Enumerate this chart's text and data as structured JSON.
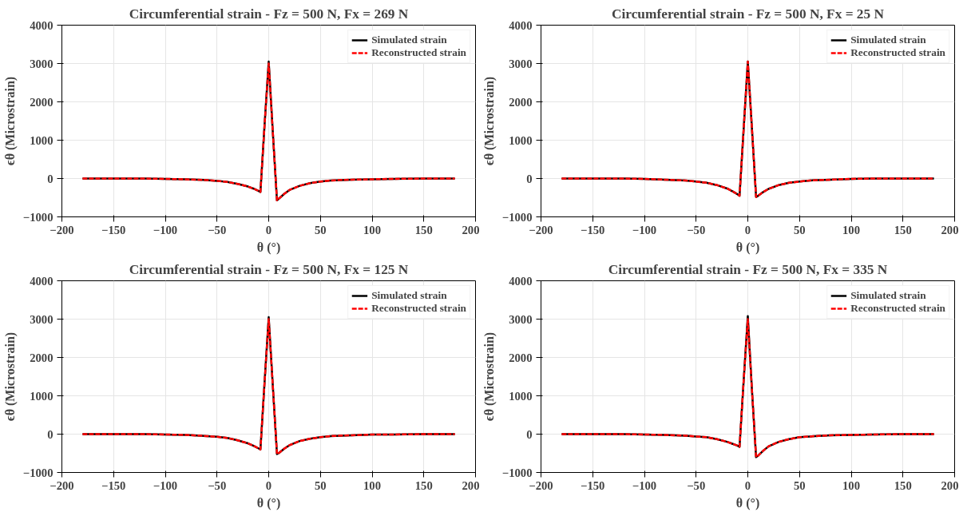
{
  "chart_data": [
    {
      "type": "line",
      "title": "Circumferential strain - Fz = 500 N, Fx = 269 N",
      "xlabel": "θ (°)",
      "ylabel": "ϵθ (Microstrain)",
      "x": [
        -180,
        -150,
        -120,
        -100,
        -80,
        -60,
        -50,
        -40,
        -30,
        -20,
        -15,
        -10,
        -8,
        -4,
        0,
        4,
        8,
        10,
        15,
        20,
        30,
        40,
        50,
        60,
        80,
        100,
        120,
        150,
        180
      ],
      "series": [
        {
          "name": "Simulated strain",
          "color": "#000000",
          "line_style": "solid",
          "values": [
            0,
            0,
            0,
            -10,
            -20,
            -40,
            -60,
            -90,
            -140,
            -210,
            -260,
            -320,
            -350,
            1400,
            3050,
            1200,
            -570,
            -520,
            -400,
            -300,
            -190,
            -120,
            -80,
            -50,
            -30,
            -20,
            -10,
            0,
            0
          ]
        },
        {
          "name": "Reconstructed strain",
          "color": "#ff0000",
          "line_style": "dashed",
          "values": [
            0,
            0,
            0,
            -10,
            -20,
            -40,
            -60,
            -90,
            -140,
            -210,
            -260,
            -320,
            -350,
            1400,
            3000,
            1200,
            -570,
            -520,
            -400,
            -300,
            -190,
            -120,
            -80,
            -50,
            -30,
            -20,
            -10,
            0,
            0
          ]
        }
      ],
      "xlim": [
        -200,
        200
      ],
      "xticks": [
        -200,
        -150,
        -100,
        -50,
        0,
        50,
        100,
        150,
        200
      ],
      "ylim": [
        -1000,
        4000
      ],
      "yticks": [
        -1000,
        0,
        1000,
        2000,
        3000,
        4000
      ],
      "grid": true,
      "legend": "top right"
    },
    {
      "type": "line",
      "title": "Circumferential strain - Fz = 500 N, Fx = 25 N",
      "xlabel": "θ (°)",
      "ylabel": "ϵθ (Microstrain)",
      "x": [
        -180,
        -150,
        -120,
        -100,
        -80,
        -60,
        -50,
        -40,
        -30,
        -20,
        -15,
        -10,
        -8,
        -4,
        0,
        4,
        8,
        10,
        15,
        20,
        30,
        40,
        50,
        60,
        80,
        100,
        120,
        150,
        180
      ],
      "series": [
        {
          "name": "Simulated strain",
          "color": "#000000",
          "line_style": "solid",
          "values": [
            0,
            0,
            0,
            -10,
            -30,
            -50,
            -80,
            -110,
            -170,
            -260,
            -330,
            -410,
            -450,
            1300,
            3050,
            1300,
            -480,
            -450,
            -350,
            -270,
            -170,
            -110,
            -80,
            -50,
            -30,
            -10,
            0,
            0,
            0
          ]
        },
        {
          "name": "Reconstructed strain",
          "color": "#ff0000",
          "line_style": "dashed",
          "values": [
            0,
            0,
            0,
            -10,
            -30,
            -50,
            -80,
            -110,
            -170,
            -260,
            -330,
            -410,
            -450,
            1300,
            3050,
            1300,
            -480,
            -450,
            -350,
            -270,
            -170,
            -110,
            -80,
            -50,
            -30,
            -10,
            0,
            0,
            0
          ]
        }
      ],
      "xlim": [
        -200,
        200
      ],
      "xticks": [
        -200,
        -150,
        -100,
        -50,
        0,
        50,
        100,
        150,
        200
      ],
      "ylim": [
        -1000,
        4000
      ],
      "yticks": [
        -1000,
        0,
        1000,
        2000,
        3000,
        4000
      ],
      "grid": true,
      "legend": "top right"
    },
    {
      "type": "line",
      "title": "Circumferential strain - Fz = 500 N, Fx = 125 N",
      "xlabel": "θ (°)",
      "ylabel": "ϵθ (Microstrain)",
      "x": [
        -180,
        -150,
        -120,
        -100,
        -80,
        -60,
        -50,
        -40,
        -30,
        -20,
        -15,
        -10,
        -8,
        -4,
        0,
        4,
        8,
        10,
        15,
        20,
        30,
        40,
        50,
        60,
        80,
        100,
        120,
        150,
        180
      ],
      "series": [
        {
          "name": "Simulated strain",
          "color": "#000000",
          "line_style": "solid",
          "values": [
            0,
            0,
            0,
            -10,
            -20,
            -50,
            -70,
            -100,
            -160,
            -240,
            -300,
            -370,
            -400,
            1350,
            3050,
            1250,
            -520,
            -490,
            -380,
            -290,
            -180,
            -120,
            -80,
            -50,
            -30,
            -10,
            -10,
            0,
            0
          ]
        },
        {
          "name": "Reconstructed strain",
          "color": "#ff0000",
          "line_style": "dashed",
          "values": [
            0,
            0,
            0,
            -10,
            -20,
            -50,
            -70,
            -100,
            -160,
            -240,
            -300,
            -370,
            -400,
            1350,
            3000,
            1250,
            -520,
            -490,
            -380,
            -290,
            -180,
            -120,
            -80,
            -50,
            -30,
            -10,
            -10,
            0,
            0
          ]
        }
      ],
      "xlim": [
        -200,
        200
      ],
      "xticks": [
        -200,
        -150,
        -100,
        -50,
        0,
        50,
        100,
        150,
        200
      ],
      "ylim": [
        -1000,
        4000
      ],
      "yticks": [
        -1000,
        0,
        1000,
        2000,
        3000,
        4000
      ],
      "grid": true,
      "legend": "top right"
    },
    {
      "type": "line",
      "title": "Circumferential strain - Fz = 500 N, Fx = 335 N",
      "xlabel": "θ (°)",
      "ylabel": "ϵθ (Microstrain)",
      "x": [
        -180,
        -150,
        -120,
        -100,
        -80,
        -60,
        -50,
        -40,
        -30,
        -20,
        -15,
        -10,
        -8,
        -4,
        0,
        4,
        8,
        10,
        15,
        20,
        30,
        40,
        50,
        60,
        80,
        100,
        120,
        150,
        180
      ],
      "series": [
        {
          "name": "Simulated strain",
          "color": "#000000",
          "line_style": "solid",
          "values": [
            0,
            0,
            0,
            -10,
            -20,
            -40,
            -60,
            -80,
            -130,
            -200,
            -250,
            -300,
            -330,
            1400,
            3080,
            1150,
            -600,
            -560,
            -430,
            -320,
            -200,
            -130,
            -80,
            -60,
            -30,
            -20,
            -10,
            0,
            0
          ]
        },
        {
          "name": "Reconstructed strain",
          "color": "#ff0000",
          "line_style": "dashed",
          "values": [
            0,
            0,
            0,
            -10,
            -20,
            -40,
            -60,
            -80,
            -130,
            -200,
            -250,
            -300,
            -330,
            1400,
            3000,
            1150,
            -600,
            -560,
            -430,
            -320,
            -200,
            -130,
            -80,
            -60,
            -30,
            -20,
            -10,
            0,
            0
          ]
        }
      ],
      "xlim": [
        -200,
        200
      ],
      "xticks": [
        -200,
        -150,
        -100,
        -50,
        0,
        50,
        100,
        150,
        200
      ],
      "ylim": [
        -1000,
        4000
      ],
      "yticks": [
        -1000,
        0,
        1000,
        2000,
        3000,
        4000
      ],
      "grid": true,
      "legend": "top right"
    }
  ]
}
